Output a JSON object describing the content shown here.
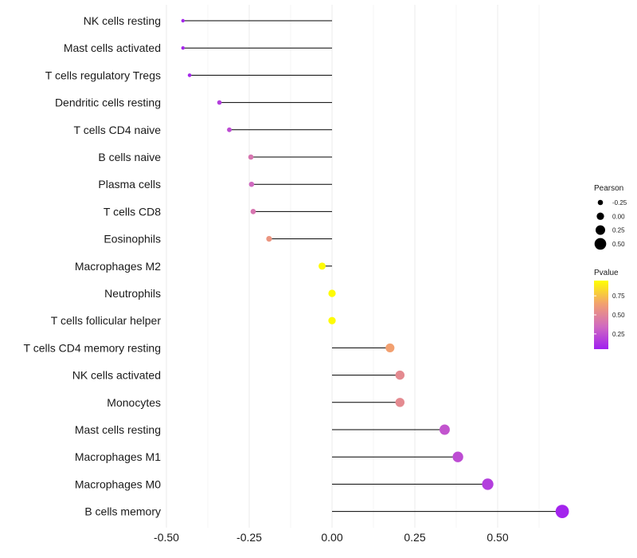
{
  "chart_data": {
    "type": "lollipop",
    "x": {
      "ticks": [
        -0.5,
        -0.25,
        0.0,
        0.25,
        0.5
      ],
      "tick_labels": [
        "-0.50",
        "-0.25",
        "0.00",
        "0.25",
        "0.50"
      ],
      "range": [
        -0.5,
        0.7
      ]
    },
    "categories": [
      "NK cells resting",
      "Mast cells activated",
      "T cells regulatory  Tregs",
      "Dendritic cells resting",
      "T cells CD4 naive",
      "B cells naive",
      "Plasma cells",
      "T cells CD8",
      "Eosinophils",
      "Macrophages M2",
      "Neutrophils",
      "T cells follicular helper",
      "T cells CD4 memory resting",
      "NK cells activated",
      "Monocytes",
      "Mast cells resting",
      "Macrophages M1",
      "Macrophages M0",
      "B cells memory"
    ],
    "pearson": [
      -0.45,
      -0.45,
      -0.43,
      -0.34,
      -0.31,
      -0.245,
      -0.243,
      -0.238,
      -0.19,
      -0.03,
      0.0,
      0.0,
      0.175,
      0.205,
      0.205,
      0.34,
      0.38,
      0.47,
      0.695
    ],
    "pvalue": [
      0.05,
      0.05,
      0.05,
      0.2,
      0.3,
      0.55,
      0.5,
      0.55,
      0.7,
      0.99,
      0.99,
      0.99,
      0.75,
      0.65,
      0.65,
      0.35,
      0.3,
      0.2,
      0.03
    ],
    "legend_size": {
      "title": "Pearson",
      "labels": [
        "-0.25",
        "0.00",
        "0.25",
        "0.50"
      ],
      "values": [
        -0.25,
        0.0,
        0.25,
        0.5
      ]
    },
    "legend_color": {
      "title": "Pvalue",
      "labels": [
        "0.25",
        "0.50",
        "0.75"
      ],
      "values": [
        0.25,
        0.5,
        0.75
      ],
      "colors": [
        "#a020f0",
        "#d06ac0",
        "#f2a070",
        "#ffff00"
      ]
    }
  }
}
